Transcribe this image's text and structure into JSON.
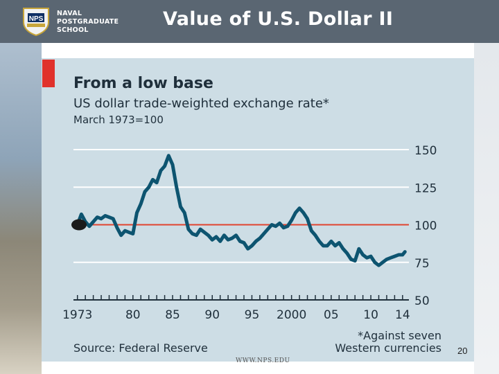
{
  "header": {
    "title": "Value of U.S. Dollar II",
    "logo_lines": [
      "NAVAL",
      "POSTGRADUATE",
      "SCHOOL"
    ],
    "logo_seal_text": "NPS"
  },
  "footer": {
    "url": "WWW.NPS.EDU",
    "page_number": "20"
  },
  "colors": {
    "chart_bg": "#cddde5",
    "series_line": "#0d5470",
    "reference_line": "#e0432e",
    "accent_bar": "#e0312b",
    "text": "#1f2f3b"
  },
  "chart_data": {
    "type": "line",
    "title": "From a low base",
    "subtitle": "US dollar trade-weighted exchange rate*",
    "index_note": "March 1973=100",
    "xlabel": "",
    "ylabel": "",
    "xlim": [
      1972.5,
      2014.8
    ],
    "ylim": [
      50,
      150
    ],
    "y_ticks": [
      150,
      125,
      100,
      75,
      50
    ],
    "x_tick_labels": [
      {
        "year": 1973,
        "label": "1973"
      },
      {
        "year": 1980,
        "label": "80"
      },
      {
        "year": 1985,
        "label": "85"
      },
      {
        "year": 1990,
        "label": "90"
      },
      {
        "year": 1995,
        "label": "95"
      },
      {
        "year": 2000,
        "label": "2000"
      },
      {
        "year": 2005,
        "label": "05"
      },
      {
        "year": 2010,
        "label": "10"
      },
      {
        "year": 2014,
        "label": "14"
      }
    ],
    "reference_line": 100,
    "grid": true,
    "start_marker": {
      "x": 1973.2,
      "y": 100
    },
    "source": "Source: Federal Reserve",
    "footnote_lines": [
      "*Against seven",
      "Western currencies"
    ],
    "series": [
      {
        "x": [
          1973.0,
          1973.5,
          1974.0,
          1974.5,
          1975.0,
          1975.5,
          1976.0,
          1976.5,
          1977.0,
          1977.5,
          1978.0,
          1978.5,
          1979.0,
          1979.5,
          1980.0,
          1980.5,
          1981.0,
          1981.5,
          1982.0,
          1982.5,
          1983.0,
          1983.5,
          1984.0,
          1984.5,
          1985.0,
          1985.5,
          1986.0,
          1986.5,
          1987.0,
          1987.5,
          1988.0,
          1988.5,
          1989.0,
          1989.5,
          1990.0,
          1990.5,
          1991.0,
          1991.5,
          1992.0,
          1992.5,
          1993.0,
          1993.5,
          1994.0,
          1994.5,
          1995.0,
          1995.5,
          1996.0,
          1996.5,
          1997.0,
          1997.5,
          1998.0,
          1998.5,
          1999.0,
          1999.5,
          2000.0,
          2000.5,
          2001.0,
          2001.5,
          2002.0,
          2002.5,
          2003.0,
          2003.5,
          2004.0,
          2004.5,
          2005.0,
          2005.5,
          2006.0,
          2006.5,
          2007.0,
          2007.5,
          2008.0,
          2008.5,
          2009.0,
          2009.5,
          2010.0,
          2010.5,
          2011.0,
          2011.5,
          2012.0,
          2012.5,
          2013.0,
          2013.5,
          2014.0,
          2014.3
        ],
        "values": [
          100,
          107,
          102,
          99,
          102,
          105,
          104,
          106,
          105,
          104,
          98,
          93,
          96,
          95,
          94,
          108,
          114,
          122,
          125,
          130,
          128,
          136,
          139,
          146,
          140,
          125,
          112,
          108,
          97,
          94,
          93,
          97,
          95,
          93,
          90,
          92,
          89,
          93,
          90,
          91,
          93,
          89,
          88,
          84,
          86,
          89,
          91,
          94,
          97,
          100,
          99,
          101,
          98,
          99,
          103,
          108,
          111,
          108,
          104,
          96,
          93,
          89,
          86,
          86,
          89,
          86,
          88,
          84,
          81,
          77,
          76,
          84,
          80,
          78,
          79,
          75,
          73,
          75,
          77,
          78,
          79,
          80,
          80,
          82
        ]
      }
    ]
  }
}
